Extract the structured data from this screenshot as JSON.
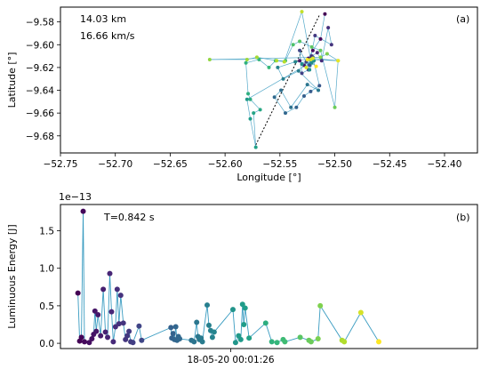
{
  "chart_data": [
    {
      "type": "scatter",
      "panel_label": "(a)",
      "xlabel": "Longitude [°]",
      "ylabel": "Latitude [°]",
      "xlim": [
        -52.75,
        -52.37
      ],
      "ylim": [
        -9.695,
        -9.567
      ],
      "xticks": [
        -52.75,
        -52.7,
        -52.65,
        -52.6,
        -52.55,
        -52.5,
        -52.45,
        -52.4
      ],
      "xtick_labels": [
        "−52.75",
        "−52.70",
        "−52.65",
        "−52.60",
        "−52.55",
        "−52.50",
        "−52.45",
        "−52.40"
      ],
      "yticks": [
        -9.58,
        -9.6,
        -9.62,
        -9.64,
        -9.66,
        -9.68
      ],
      "ytick_labels": [
        "−9.58",
        "−9.60",
        "−9.62",
        "−9.64",
        "−9.66",
        "−9.68"
      ],
      "annotations": [
        "14.03 km",
        "16.66 km/s"
      ],
      "dashed_line": [
        [
          -52.572,
          -9.688
        ],
        [
          -52.514,
          -9.574
        ]
      ],
      "path": [
        [
          -52.509,
          -9.573
        ],
        [
          -52.513,
          -9.595
        ],
        [
          -52.52,
          -9.605
        ],
        [
          -52.524,
          -9.612
        ],
        [
          -52.532,
          -9.614
        ],
        [
          -52.528,
          -9.618
        ],
        [
          -52.521,
          -9.61
        ],
        [
          -52.516,
          -9.607
        ],
        [
          -52.512,
          -9.614
        ],
        [
          -52.506,
          -9.585
        ],
        [
          -52.503,
          -9.6
        ],
        [
          -52.518,
          -9.592
        ],
        [
          -52.524,
          -9.622
        ],
        [
          -52.53,
          -9.625
        ],
        [
          -52.532,
          -9.605
        ],
        [
          -52.526,
          -9.615
        ],
        [
          -52.523,
          -9.618
        ],
        [
          -52.52,
          -9.611
        ],
        [
          -52.514,
          -9.636
        ],
        [
          -52.522,
          -9.641
        ],
        [
          -52.528,
          -9.645
        ],
        [
          -52.535,
          -9.655
        ],
        [
          -52.545,
          -9.66
        ],
        [
          -52.555,
          -9.646
        ],
        [
          -52.549,
          -9.64
        ],
        [
          -52.54,
          -9.655
        ],
        [
          -52.525,
          -9.635
        ],
        [
          -52.515,
          -9.64
        ],
        [
          -52.533,
          -9.623
        ],
        [
          -52.547,
          -9.63
        ],
        [
          -52.552,
          -9.62
        ],
        [
          -52.536,
          -9.615
        ],
        [
          -52.521,
          -9.616
        ],
        [
          -52.53,
          -9.617
        ],
        [
          -52.523,
          -9.622
        ],
        [
          -52.519,
          -9.614
        ],
        [
          -52.58,
          -9.648
        ],
        [
          -52.577,
          -9.665
        ],
        [
          -52.572,
          -9.69
        ],
        [
          -52.574,
          -9.66
        ],
        [
          -52.568,
          -9.657
        ],
        [
          -52.577,
          -9.648
        ],
        [
          -52.579,
          -9.643
        ],
        [
          -52.581,
          -9.616
        ],
        [
          -52.569,
          -9.613
        ],
        [
          -52.56,
          -9.62
        ],
        [
          -52.554,
          -9.614
        ],
        [
          -52.545,
          -9.614
        ],
        [
          -52.538,
          -9.6
        ],
        [
          -52.532,
          -9.597
        ],
        [
          -52.521,
          -9.602
        ],
        [
          -52.513,
          -9.605
        ],
        [
          -52.5,
          -9.655
        ],
        [
          -52.497,
          -9.614
        ],
        [
          -52.507,
          -9.608
        ],
        [
          -52.513,
          -9.611
        ],
        [
          -52.614,
          -9.613
        ],
        [
          -52.58,
          -9.613
        ],
        [
          -52.571,
          -9.611
        ],
        [
          -52.553,
          -9.614
        ],
        [
          -52.546,
          -9.615
        ],
        [
          -52.53,
          -9.571
        ],
        [
          -52.522,
          -9.613
        ],
        [
          -52.526,
          -9.62
        ],
        [
          -52.52,
          -9.612
        ],
        [
          -52.497,
          -9.614
        ],
        [
          -52.525,
          -9.613
        ],
        [
          -52.517,
          -9.619
        ]
      ]
    },
    {
      "type": "scatter",
      "panel_label": "(b)",
      "xlabel": "",
      "ylabel": "Luminuous Energy [J]",
      "ylim": [
        -0.07,
        1.85
      ],
      "yticks": [
        0.0,
        0.5,
        1.0,
        1.5
      ],
      "ytick_labels": [
        "0.0",
        "0.5",
        "1.0",
        "1.5"
      ],
      "offset_text": "1e−13",
      "xtick_labels": [
        "18-05-20 00:01:26"
      ],
      "xtick_value_s": 0.35,
      "xlim_s": [
        -0.04,
        0.915
      ],
      "annotations": [
        "T=0.842 s"
      ],
      "series": [
        {
          "t_s": [
            0.0,
            0.004,
            0.008,
            0.012,
            0.015,
            0.026,
            0.032,
            0.036,
            0.039,
            0.042,
            0.046,
            0.052,
            0.058,
            0.063,
            0.068,
            0.073,
            0.077,
            0.081,
            0.086,
            0.09,
            0.094,
            0.098,
            0.104,
            0.109,
            0.113,
            0.117,
            0.121,
            0.126,
            0.14,
            0.146,
            0.213,
            0.215,
            0.218,
            0.221,
            0.224,
            0.227,
            0.23,
            0.233,
            0.26,
            0.266,
            0.272,
            0.275,
            0.278,
            0.282,
            0.285,
            0.296,
            0.3,
            0.304,
            0.308,
            0.312,
            0.355,
            0.361,
            0.368,
            0.373,
            0.377,
            0.38,
            0.383,
            0.392,
            0.43,
            0.444,
            0.456,
            0.47,
            0.474,
            0.509,
            0.529,
            0.534,
            0.55,
            0.555,
            0.605,
            0.61,
            0.648,
            0.689
          ],
          "energy": [
            0.67,
            0.03,
            0.08,
            1.76,
            0.02,
            0.01,
            0.06,
            0.12,
            0.43,
            0.16,
            0.38,
            0.1,
            0.72,
            0.15,
            0.08,
            0.93,
            0.42,
            0.02,
            0.22,
            0.72,
            0.26,
            0.64,
            0.27,
            0.05,
            0.1,
            0.16,
            0.02,
            0.01,
            0.23,
            0.04,
            0.21,
            0.07,
            0.13,
            0.05,
            0.22,
            0.04,
            0.09,
            0.06,
            0.04,
            0.02,
            0.28,
            0.09,
            0.05,
            0.07,
            0.02,
            0.51,
            0.24,
            0.17,
            0.08,
            0.15,
            0.45,
            0.01,
            0.1,
            0.05,
            0.52,
            0.25,
            0.47,
            0.07,
            0.27,
            0.02,
            0.01,
            0.05,
            0.02,
            0.08,
            0.04,
            0.02,
            0.06,
            0.5,
            0.04,
            0.02,
            0.41,
            0.02
          ]
        }
      ]
    }
  ]
}
